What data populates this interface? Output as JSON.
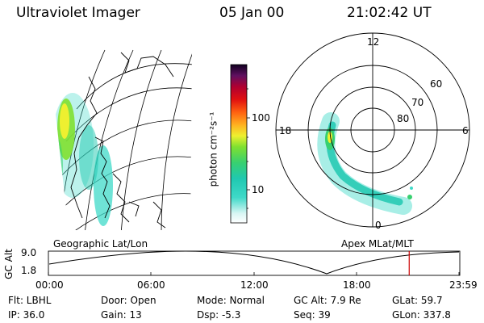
{
  "header": {
    "instrument": "Ultraviolet Imager",
    "date": "05 Jan 00",
    "time": "21:02:42 UT"
  },
  "colorbar": {
    "unit_label": "photon cm⁻²s⁻¹",
    "ticks": [
      "100",
      "10"
    ]
  },
  "polar_plot": {
    "mlt_labels": [
      "12",
      "18",
      "6",
      "0"
    ],
    "lat_labels": [
      "60",
      "70",
      "80"
    ]
  },
  "map_titles": {
    "left": "Geographic Lat/Lon",
    "right": "Apex  MLat/MLT"
  },
  "timeline": {
    "ylabel": "GC Alt",
    "yticks": [
      "9.0",
      "1.8"
    ],
    "xticks": [
      "00:00",
      "06:00",
      "12:00",
      "18:00",
      "23:59"
    ],
    "current_time_fraction": 0.877
  },
  "status": {
    "flt": "Flt: LBHL",
    "ip": "IP: 36.0",
    "door": "Door: Open",
    "gain": "Gain: 13",
    "mode": "Mode: Normal",
    "dsp": "Dsp:    -5.3",
    "gc_alt": "GC Alt: 7.9 Re",
    "seq": "Seq: 39",
    "glat": "GLat:   59.7",
    "glon": "GLon: 337.8"
  },
  "colors": {
    "current_time_marker": "#cc0000"
  }
}
